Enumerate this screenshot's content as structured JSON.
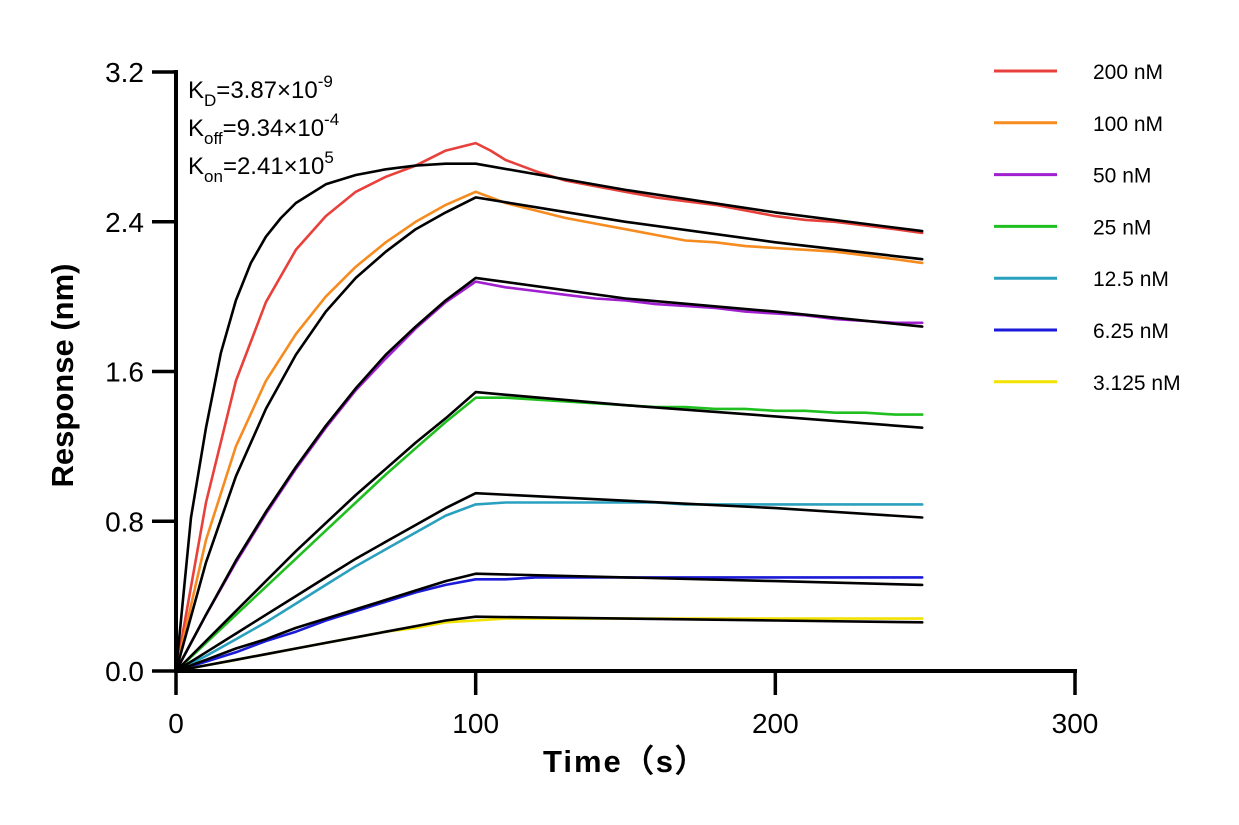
{
  "chart_data": {
    "type": "line",
    "xlabel": "Time（s）",
    "ylabel": "Response (nm)",
    "xlim": [
      0,
      300
    ],
    "ylim": [
      0,
      3.2
    ],
    "xticks": [
      "0",
      "100",
      "200",
      "300"
    ],
    "yticks": [
      "0.0",
      "0.8",
      "1.6",
      "2.4",
      "3.2"
    ],
    "grid": false,
    "legend_position": "top-right",
    "annotations": {
      "kd": {
        "base": "K",
        "sub": "D",
        "value": "=3.87×10",
        "exp": "-9"
      },
      "koff": {
        "base": "K",
        "sub": "off",
        "value": "=9.34×10",
        "exp": "-4"
      },
      "kon": {
        "base": "K",
        "sub": "on",
        "value": "=2.41×10",
        "exp": "5"
      }
    },
    "association_end": 100,
    "end_time": 249,
    "fit_color": "#000000",
    "series": [
      {
        "name": "200 nM",
        "color": "#e8413b",
        "data": [
          [
            0,
            0
          ],
          [
            10,
            0.9
          ],
          [
            20,
            1.55
          ],
          [
            30,
            1.97
          ],
          [
            40,
            2.25
          ],
          [
            50,
            2.43
          ],
          [
            60,
            2.56
          ],
          [
            70,
            2.64
          ],
          [
            80,
            2.7
          ],
          [
            90,
            2.78
          ],
          [
            95,
            2.8
          ],
          [
            100,
            2.82
          ],
          [
            105,
            2.78
          ],
          [
            110,
            2.73
          ],
          [
            120,
            2.67
          ],
          [
            130,
            2.62
          ],
          [
            140,
            2.59
          ],
          [
            150,
            2.56
          ],
          [
            160,
            2.53
          ],
          [
            170,
            2.51
          ],
          [
            180,
            2.49
          ],
          [
            190,
            2.46
          ],
          [
            200,
            2.43
          ],
          [
            210,
            2.41
          ],
          [
            220,
            2.4
          ],
          [
            230,
            2.38
          ],
          [
            240,
            2.36
          ],
          [
            249,
            2.34
          ]
        ],
        "fit": [
          [
            0,
            0
          ],
          [
            5,
            0.82
          ],
          [
            10,
            1.3
          ],
          [
            15,
            1.7
          ],
          [
            20,
            1.98
          ],
          [
            25,
            2.18
          ],
          [
            30,
            2.32
          ],
          [
            35,
            2.42
          ],
          [
            40,
            2.5
          ],
          [
            50,
            2.6
          ],
          [
            60,
            2.65
          ],
          [
            70,
            2.68
          ],
          [
            80,
            2.7
          ],
          [
            90,
            2.71
          ],
          [
            100,
            2.71
          ],
          [
            150,
            2.57
          ],
          [
            200,
            2.45
          ],
          [
            249,
            2.35
          ]
        ]
      },
      {
        "name": "100 nM",
        "color": "#f68b1f",
        "data": [
          [
            0,
            0
          ],
          [
            10,
            0.7
          ],
          [
            20,
            1.2
          ],
          [
            30,
            1.55
          ],
          [
            40,
            1.8
          ],
          [
            50,
            2.0
          ],
          [
            60,
            2.16
          ],
          [
            70,
            2.29
          ],
          [
            80,
            2.4
          ],
          [
            90,
            2.49
          ],
          [
            100,
            2.56
          ],
          [
            110,
            2.5
          ],
          [
            120,
            2.46
          ],
          [
            130,
            2.42
          ],
          [
            140,
            2.39
          ],
          [
            150,
            2.36
          ],
          [
            160,
            2.33
          ],
          [
            170,
            2.3
          ],
          [
            180,
            2.29
          ],
          [
            190,
            2.27
          ],
          [
            200,
            2.26
          ],
          [
            210,
            2.25
          ],
          [
            220,
            2.24
          ],
          [
            230,
            2.22
          ],
          [
            240,
            2.2
          ],
          [
            249,
            2.18
          ]
        ],
        "fit": [
          [
            0,
            0
          ],
          [
            10,
            0.58
          ],
          [
            20,
            1.04
          ],
          [
            30,
            1.4
          ],
          [
            40,
            1.69
          ],
          [
            50,
            1.92
          ],
          [
            60,
            2.1
          ],
          [
            70,
            2.24
          ],
          [
            80,
            2.36
          ],
          [
            90,
            2.45
          ],
          [
            100,
            2.53
          ],
          [
            150,
            2.4
          ],
          [
            200,
            2.29
          ],
          [
            249,
            2.2
          ]
        ]
      },
      {
        "name": "50 nM",
        "color": "#a020d0",
        "data": [
          [
            0,
            0
          ],
          [
            10,
            0.3
          ],
          [
            20,
            0.58
          ],
          [
            30,
            0.84
          ],
          [
            40,
            1.08
          ],
          [
            50,
            1.3
          ],
          [
            60,
            1.5
          ],
          [
            70,
            1.67
          ],
          [
            80,
            1.83
          ],
          [
            90,
            1.97
          ],
          [
            100,
            2.08
          ],
          [
            110,
            2.05
          ],
          [
            120,
            2.03
          ],
          [
            130,
            2.01
          ],
          [
            140,
            1.99
          ],
          [
            150,
            1.98
          ],
          [
            160,
            1.96
          ],
          [
            170,
            1.95
          ],
          [
            180,
            1.94
          ],
          [
            190,
            1.92
          ],
          [
            200,
            1.91
          ],
          [
            210,
            1.9
          ],
          [
            220,
            1.88
          ],
          [
            230,
            1.87
          ],
          [
            240,
            1.86
          ],
          [
            249,
            1.86
          ]
        ],
        "fit": [
          [
            0,
            0
          ],
          [
            10,
            0.3
          ],
          [
            20,
            0.59
          ],
          [
            30,
            0.85
          ],
          [
            40,
            1.09
          ],
          [
            50,
            1.31
          ],
          [
            60,
            1.51
          ],
          [
            70,
            1.69
          ],
          [
            80,
            1.84
          ],
          [
            90,
            1.98
          ],
          [
            100,
            2.1
          ],
          [
            150,
            1.99
          ],
          [
            200,
            1.92
          ],
          [
            249,
            1.84
          ]
        ]
      },
      {
        "name": "25 nM",
        "color": "#1fbf1f",
        "data": [
          [
            0,
            0
          ],
          [
            10,
            0.15
          ],
          [
            20,
            0.3
          ],
          [
            30,
            0.45
          ],
          [
            40,
            0.6
          ],
          [
            50,
            0.75
          ],
          [
            60,
            0.9
          ],
          [
            70,
            1.05
          ],
          [
            80,
            1.19
          ],
          [
            90,
            1.33
          ],
          [
            100,
            1.46
          ],
          [
            110,
            1.46
          ],
          [
            120,
            1.45
          ],
          [
            130,
            1.44
          ],
          [
            140,
            1.43
          ],
          [
            150,
            1.42
          ],
          [
            160,
            1.41
          ],
          [
            170,
            1.41
          ],
          [
            180,
            1.4
          ],
          [
            190,
            1.4
          ],
          [
            200,
            1.39
          ],
          [
            210,
            1.39
          ],
          [
            220,
            1.38
          ],
          [
            230,
            1.38
          ],
          [
            240,
            1.37
          ],
          [
            249,
            1.37
          ]
        ],
        "fit": [
          [
            0,
            0
          ],
          [
            10,
            0.16
          ],
          [
            20,
            0.32
          ],
          [
            30,
            0.48
          ],
          [
            40,
            0.64
          ],
          [
            50,
            0.79
          ],
          [
            60,
            0.94
          ],
          [
            70,
            1.08
          ],
          [
            80,
            1.22
          ],
          [
            90,
            1.35
          ],
          [
            100,
            1.49
          ],
          [
            150,
            1.42
          ],
          [
            200,
            1.36
          ],
          [
            249,
            1.3
          ]
        ]
      },
      {
        "name": "12.5 nM",
        "color": "#2aa0bf",
        "data": [
          [
            0,
            0
          ],
          [
            10,
            0.08
          ],
          [
            20,
            0.17
          ],
          [
            30,
            0.26
          ],
          [
            40,
            0.36
          ],
          [
            50,
            0.46
          ],
          [
            60,
            0.56
          ],
          [
            70,
            0.65
          ],
          [
            80,
            0.74
          ],
          [
            90,
            0.83
          ],
          [
            100,
            0.89
          ],
          [
            110,
            0.9
          ],
          [
            120,
            0.9
          ],
          [
            130,
            0.9
          ],
          [
            140,
            0.9
          ],
          [
            150,
            0.9
          ],
          [
            160,
            0.9
          ],
          [
            170,
            0.89
          ],
          [
            180,
            0.89
          ],
          [
            190,
            0.89
          ],
          [
            200,
            0.89
          ],
          [
            210,
            0.89
          ],
          [
            220,
            0.89
          ],
          [
            230,
            0.89
          ],
          [
            240,
            0.89
          ],
          [
            249,
            0.89
          ]
        ],
        "fit": [
          [
            0,
            0
          ],
          [
            10,
            0.1
          ],
          [
            20,
            0.2
          ],
          [
            30,
            0.3
          ],
          [
            40,
            0.4
          ],
          [
            50,
            0.5
          ],
          [
            60,
            0.6
          ],
          [
            70,
            0.69
          ],
          [
            80,
            0.78
          ],
          [
            90,
            0.87
          ],
          [
            100,
            0.95
          ],
          [
            150,
            0.91
          ],
          [
            200,
            0.87
          ],
          [
            249,
            0.82
          ]
        ]
      },
      {
        "name": "6.25 nM",
        "color": "#1a1ad8",
        "data": [
          [
            0,
            0
          ],
          [
            10,
            0.05
          ],
          [
            20,
            0.1
          ],
          [
            30,
            0.16
          ],
          [
            40,
            0.21
          ],
          [
            50,
            0.27
          ],
          [
            60,
            0.32
          ],
          [
            70,
            0.37
          ],
          [
            80,
            0.42
          ],
          [
            90,
            0.46
          ],
          [
            100,
            0.49
          ],
          [
            110,
            0.49
          ],
          [
            120,
            0.5
          ],
          [
            130,
            0.5
          ],
          [
            140,
            0.5
          ],
          [
            150,
            0.5
          ],
          [
            160,
            0.5
          ],
          [
            170,
            0.5
          ],
          [
            180,
            0.5
          ],
          [
            190,
            0.5
          ],
          [
            200,
            0.5
          ],
          [
            210,
            0.5
          ],
          [
            220,
            0.5
          ],
          [
            230,
            0.5
          ],
          [
            240,
            0.5
          ],
          [
            249,
            0.5
          ]
        ],
        "fit": [
          [
            0,
            0
          ],
          [
            10,
            0.06
          ],
          [
            20,
            0.12
          ],
          [
            30,
            0.17
          ],
          [
            40,
            0.23
          ],
          [
            50,
            0.28
          ],
          [
            60,
            0.33
          ],
          [
            70,
            0.38
          ],
          [
            80,
            0.43
          ],
          [
            90,
            0.48
          ],
          [
            100,
            0.52
          ],
          [
            150,
            0.5
          ],
          [
            200,
            0.48
          ],
          [
            249,
            0.46
          ]
        ]
      },
      {
        "name": "3.125 nM",
        "color": "#f2e200",
        "data": [
          [
            0,
            0
          ],
          [
            10,
            0.03
          ],
          [
            20,
            0.06
          ],
          [
            30,
            0.09
          ],
          [
            40,
            0.12
          ],
          [
            50,
            0.15
          ],
          [
            60,
            0.18
          ],
          [
            70,
            0.21
          ],
          [
            80,
            0.23
          ],
          [
            90,
            0.26
          ],
          [
            100,
            0.27
          ],
          [
            110,
            0.28
          ],
          [
            120,
            0.28
          ],
          [
            130,
            0.28
          ],
          [
            140,
            0.28
          ],
          [
            150,
            0.28
          ],
          [
            160,
            0.28
          ],
          [
            170,
            0.28
          ],
          [
            180,
            0.28
          ],
          [
            190,
            0.28
          ],
          [
            200,
            0.28
          ],
          [
            210,
            0.28
          ],
          [
            220,
            0.28
          ],
          [
            230,
            0.28
          ],
          [
            240,
            0.28
          ],
          [
            249,
            0.28
          ]
        ],
        "fit": [
          [
            0,
            0
          ],
          [
            10,
            0.03
          ],
          [
            20,
            0.06
          ],
          [
            30,
            0.09
          ],
          [
            40,
            0.12
          ],
          [
            50,
            0.15
          ],
          [
            60,
            0.18
          ],
          [
            70,
            0.21
          ],
          [
            80,
            0.24
          ],
          [
            90,
            0.27
          ],
          [
            100,
            0.29
          ],
          [
            150,
            0.28
          ],
          [
            200,
            0.27
          ],
          [
            249,
            0.26
          ]
        ]
      }
    ]
  }
}
